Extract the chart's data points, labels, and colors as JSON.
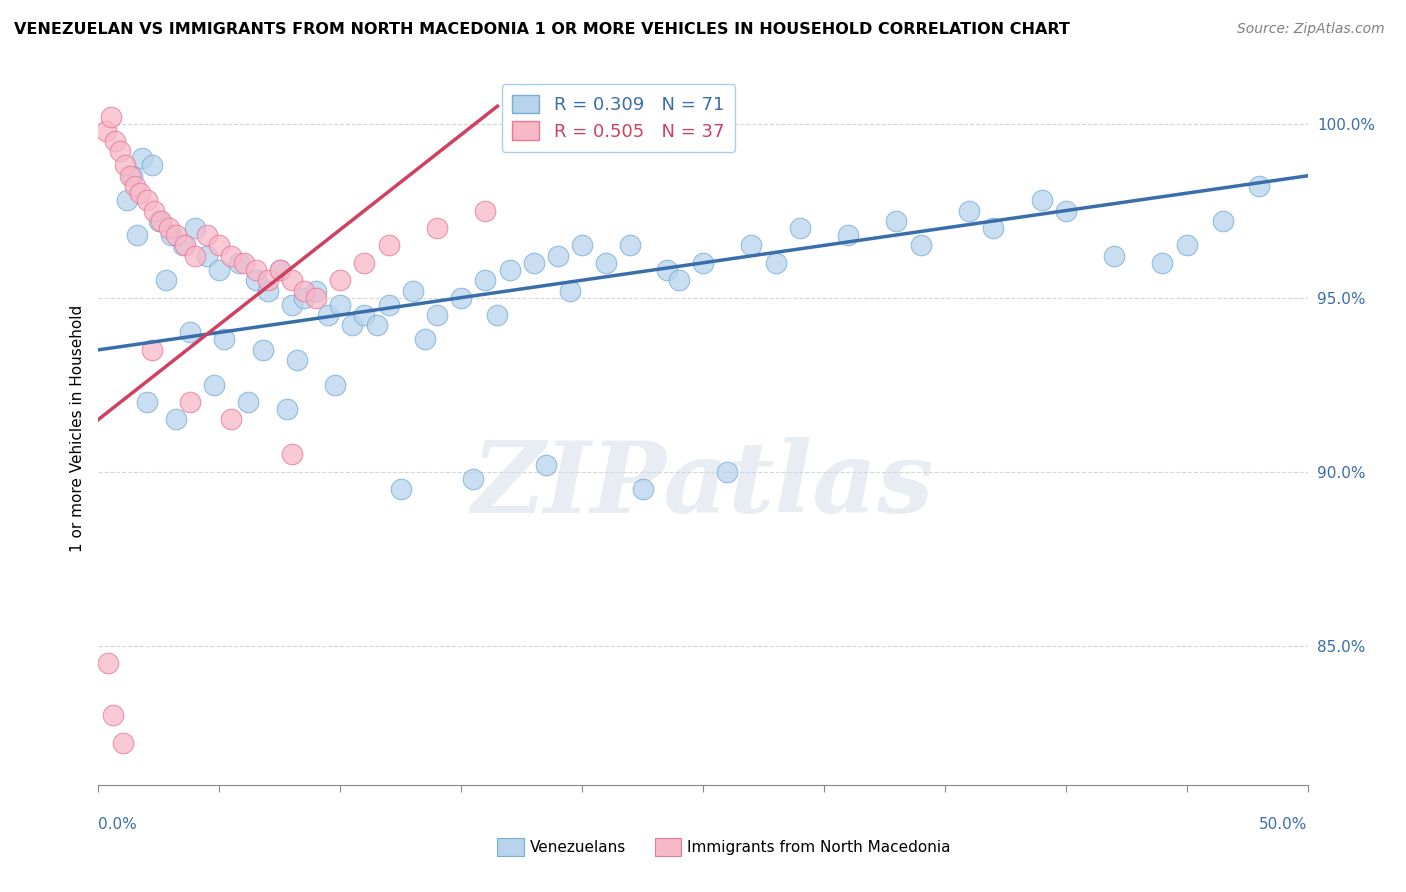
{
  "title": "VENEZUELAN VS IMMIGRANTS FROM NORTH MACEDONIA 1 OR MORE VEHICLES IN HOUSEHOLD CORRELATION CHART",
  "source": "Source: ZipAtlas.com",
  "ylabel": "1 or more Vehicles in Household",
  "blue_R": 0.309,
  "blue_N": 71,
  "pink_R": 0.505,
  "pink_N": 37,
  "blue_color": "#b8d4ec",
  "pink_color": "#f7b8c8",
  "blue_edge_color": "#7aadd4",
  "pink_edge_color": "#e87898",
  "blue_line_color": "#3a6eaa",
  "pink_line_color": "#d04060",
  "legend_label_blue": "Venezuelans",
  "legend_label_pink": "Immigrants from North Macedonia",
  "watermark": "ZIPatlas",
  "xlim": [
    0.0,
    50.0
  ],
  "ylim": [
    81.0,
    101.5
  ],
  "ytick_positions": [
    85.0,
    90.0,
    95.0,
    100.0
  ],
  "ytick_labels": [
    "85.0%",
    "90.0%",
    "95.0%",
    "100.0%"
  ],
  "blue_scatter_x": [
    1.2,
    1.4,
    1.8,
    2.2,
    2.5,
    3.0,
    3.5,
    4.0,
    4.5,
    5.0,
    5.8,
    6.5,
    7.0,
    7.5,
    8.0,
    8.5,
    9.0,
    9.5,
    10.0,
    10.5,
    11.0,
    12.0,
    13.0,
    14.0,
    15.0,
    16.0,
    17.0,
    18.0,
    19.0,
    20.0,
    21.0,
    22.0,
    23.5,
    25.0,
    27.0,
    29.0,
    31.0,
    33.0,
    36.0,
    39.0,
    42.0,
    45.0,
    48.0,
    1.6,
    2.8,
    3.8,
    5.2,
    6.8,
    8.2,
    11.5,
    13.5,
    16.5,
    19.5,
    24.0,
    28.0,
    34.0,
    37.0,
    40.0,
    44.0,
    46.5,
    2.0,
    3.2,
    4.8,
    6.2,
    7.8,
    9.8,
    12.5,
    15.5,
    18.5,
    22.5,
    26.0
  ],
  "blue_scatter_y": [
    97.8,
    98.5,
    99.0,
    98.8,
    97.2,
    96.8,
    96.5,
    97.0,
    96.2,
    95.8,
    96.0,
    95.5,
    95.2,
    95.8,
    94.8,
    95.0,
    95.2,
    94.5,
    94.8,
    94.2,
    94.5,
    94.8,
    95.2,
    94.5,
    95.0,
    95.5,
    95.8,
    96.0,
    96.2,
    96.5,
    96.0,
    96.5,
    95.8,
    96.0,
    96.5,
    97.0,
    96.8,
    97.2,
    97.5,
    97.8,
    96.2,
    96.5,
    98.2,
    96.8,
    95.5,
    94.0,
    93.8,
    93.5,
    93.2,
    94.2,
    93.8,
    94.5,
    95.2,
    95.5,
    96.0,
    96.5,
    97.0,
    97.5,
    96.0,
    97.2,
    92.0,
    91.5,
    92.5,
    92.0,
    91.8,
    92.5,
    89.5,
    89.8,
    90.2,
    89.5,
    90.0
  ],
  "pink_scatter_x": [
    0.3,
    0.5,
    0.7,
    0.9,
    1.1,
    1.3,
    1.5,
    1.7,
    2.0,
    2.3,
    2.6,
    2.9,
    3.2,
    3.6,
    4.0,
    4.5,
    5.0,
    5.5,
    6.0,
    6.5,
    7.0,
    7.5,
    8.0,
    8.5,
    9.0,
    10.0,
    11.0,
    12.0,
    14.0,
    16.0,
    0.4,
    0.6,
    1.0,
    2.2,
    3.8,
    5.5,
    8.0
  ],
  "pink_scatter_y": [
    99.8,
    100.2,
    99.5,
    99.2,
    98.8,
    98.5,
    98.2,
    98.0,
    97.8,
    97.5,
    97.2,
    97.0,
    96.8,
    96.5,
    96.2,
    96.8,
    96.5,
    96.2,
    96.0,
    95.8,
    95.5,
    95.8,
    95.5,
    95.2,
    95.0,
    95.5,
    96.0,
    96.5,
    97.0,
    97.5,
    84.5,
    83.0,
    82.2,
    93.5,
    92.0,
    91.5,
    90.5
  ],
  "blue_trend_x": [
    0.0,
    50.0
  ],
  "blue_trend_y": [
    93.5,
    98.5
  ],
  "pink_trend_x": [
    0.0,
    16.5
  ],
  "pink_trend_y": [
    91.5,
    100.5
  ]
}
